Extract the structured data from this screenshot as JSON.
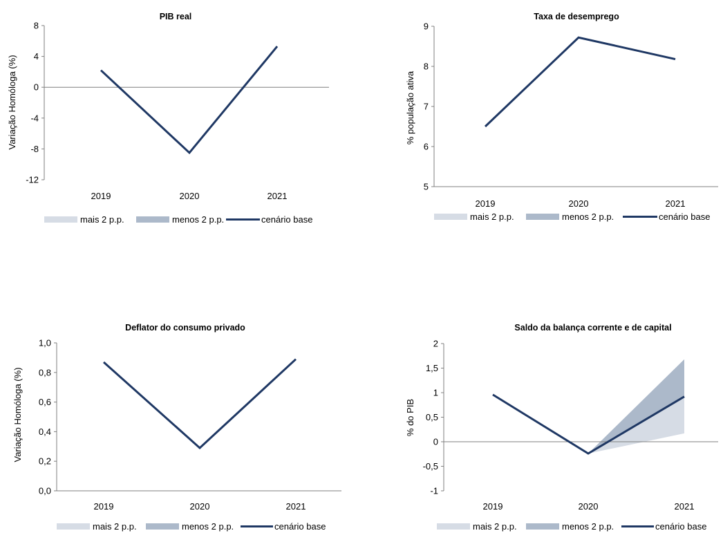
{
  "legend": {
    "upper": "mais 2 p.p.",
    "lower": "menos 2 p.p.",
    "base": "cenário base"
  },
  "colors": {
    "base_line": "#1f3864",
    "band_upper": "#d6dce5",
    "band_lower": "#acb9ca",
    "axis": "#7f7f7f"
  },
  "chart_data": [
    {
      "type": "line",
      "title": "PIB real",
      "ylabel": "Variação Homóloga (%)",
      "categories": [
        "2019",
        "2020",
        "2021"
      ],
      "ylim": [
        -12,
        8
      ],
      "yticks": [
        "8",
        "4",
        "0",
        "-4",
        "-8",
        "-12"
      ],
      "ytick_values": [
        8,
        4,
        0,
        -4,
        -8,
        -12
      ],
      "series": [
        {
          "name": "cenário base",
          "values": [
            2.2,
            -8.5,
            5.3
          ]
        }
      ]
    },
    {
      "type": "line",
      "title": "Taxa de desemprego",
      "ylabel": "% população ativa",
      "categories": [
        "2019",
        "2020",
        "2021"
      ],
      "ylim": [
        5,
        9
      ],
      "yticks": [
        "9",
        "8",
        "7",
        "6",
        "5"
      ],
      "ytick_values": [
        9,
        8,
        7,
        6,
        5
      ],
      "series": [
        {
          "name": "cenário base",
          "values": [
            6.5,
            8.72,
            8.18
          ]
        }
      ]
    },
    {
      "type": "line",
      "title": "Deflator do consumo privado",
      "ylabel": "Variação Homóloga (%)",
      "categories": [
        "2019",
        "2020",
        "2021"
      ],
      "ylim": [
        0,
        1
      ],
      "yticks": [
        "1,0",
        "0,8",
        "0,6",
        "0,4",
        "0,2",
        "0,0"
      ],
      "ytick_values": [
        1.0,
        0.8,
        0.6,
        0.4,
        0.2,
        0.0
      ],
      "series": [
        {
          "name": "cenário base",
          "values": [
            0.87,
            0.29,
            0.89
          ]
        }
      ]
    },
    {
      "type": "area",
      "title": "Saldo da balança corrente e de capital",
      "ylabel": "% do PIB",
      "categories": [
        "2019",
        "2020",
        "2021"
      ],
      "ylim": [
        -1,
        2
      ],
      "yticks": [
        "2",
        "1,5",
        "1",
        "0,5",
        "0",
        "-0,5",
        "-1"
      ],
      "ytick_values": [
        2,
        1.5,
        1,
        0.5,
        0,
        -0.5,
        -1
      ],
      "series": [
        {
          "name": "cenário base",
          "values": [
            0.96,
            -0.24,
            0.92
          ]
        },
        {
          "name": "mais 2 p.p.",
          "values": [
            null,
            -0.24,
            0.17
          ]
        },
        {
          "name": "menos 2 p.p.",
          "values": [
            null,
            -0.24,
            1.68
          ]
        }
      ]
    }
  ]
}
